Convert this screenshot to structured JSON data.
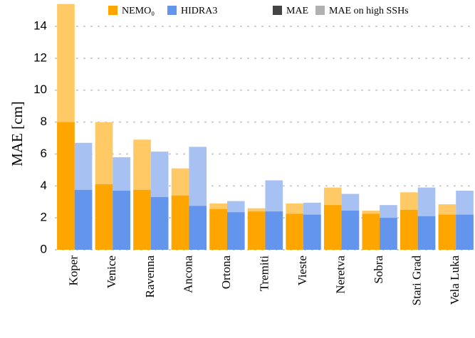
{
  "chart_data": {
    "type": "bar",
    "y_label": "MAE [cm]",
    "categories": [
      "Koper",
      "Venice",
      "Ravenna",
      "Ancona",
      "Ortona",
      "Tremiti",
      "Vieste",
      "Neretva",
      "Sobra",
      "Stari Grad",
      "Vela Luka"
    ],
    "series": [
      {
        "name": "NEMO₀",
        "color": "#ffa500",
        "light_color": "#ffc966",
        "values": [
          8.0,
          4.1,
          3.75,
          3.4,
          2.55,
          2.4,
          2.25,
          2.8,
          2.25,
          2.5,
          2.2
        ],
        "high_values": [
          15.4,
          8.0,
          6.9,
          5.1,
          2.9,
          2.6,
          2.9,
          3.9,
          2.45,
          3.6,
          2.85
        ]
      },
      {
        "name": "HIDRA3",
        "color": "#6495ed",
        "light_color": "#a7c1f2",
        "values": [
          3.75,
          3.7,
          3.3,
          2.75,
          2.35,
          2.4,
          2.2,
          2.45,
          2.0,
          2.1,
          2.2
        ],
        "high_values": [
          6.7,
          5.8,
          6.15,
          6.45,
          3.05,
          4.35,
          2.95,
          3.5,
          2.8,
          3.9,
          3.7
        ]
      }
    ],
    "metrics": [
      {
        "name": "MAE",
        "color": "#444444"
      },
      {
        "name": "MAE on high SSHs",
        "color": "#b0b0b0"
      }
    ],
    "ylim": [
      0,
      15.4
    ],
    "yticks": [
      0,
      2,
      4,
      6,
      8,
      10,
      12,
      14
    ],
    "grid": true
  }
}
